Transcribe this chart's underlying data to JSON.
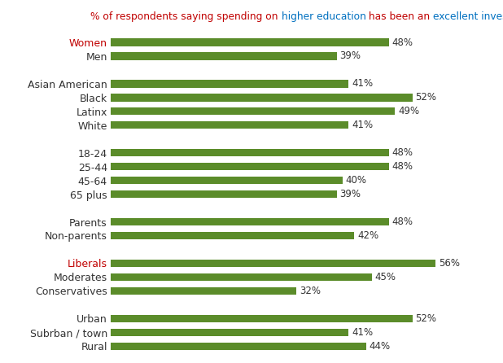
{
  "title_parts": [
    {
      "text": "% of respondents saying spending on ",
      "color": "#c00000"
    },
    {
      "text": "higher education",
      "color": "#0070c0"
    },
    {
      "text": " has been an ",
      "color": "#c00000"
    },
    {
      "text": "excellent investment",
      "color": "#0070c0"
    }
  ],
  "categories": [
    "Women",
    "Men",
    "",
    "Asian American",
    "Black",
    "Latinx",
    "White",
    "",
    "18-24",
    "25-44",
    "45-64",
    "65 plus",
    "",
    "Parents",
    "Non-parents",
    "",
    "Liberals",
    "Moderates",
    "Conservatives",
    "",
    "Urban",
    "Subrban / town",
    "Rural"
  ],
  "values": [
    48,
    39,
    0,
    41,
    52,
    49,
    41,
    0,
    48,
    48,
    40,
    39,
    0,
    48,
    42,
    0,
    56,
    45,
    32,
    0,
    52,
    41,
    44
  ],
  "bar_color": "#5b8c2a",
  "label_colors": {
    "Women": "#c00000",
    "Men": "#333333",
    "Asian American": "#333333",
    "Black": "#333333",
    "Latinx": "#333333",
    "White": "#333333",
    "18-24": "#333333",
    "25-44": "#333333",
    "45-64": "#333333",
    "65 plus": "#333333",
    "Parents": "#333333",
    "Non-parents": "#333333",
    "Liberals": "#c00000",
    "Moderates": "#333333",
    "Conservatives": "#333333",
    "Urban": "#333333",
    "Subrban / town": "#333333",
    "Rural": "#333333"
  },
  "background_color": "#ffffff",
  "xlim": [
    0,
    65
  ],
  "bar_height": 0.55,
  "title_fontsize": 8.8,
  "label_fontsize": 9.0,
  "value_fontsize": 8.5
}
